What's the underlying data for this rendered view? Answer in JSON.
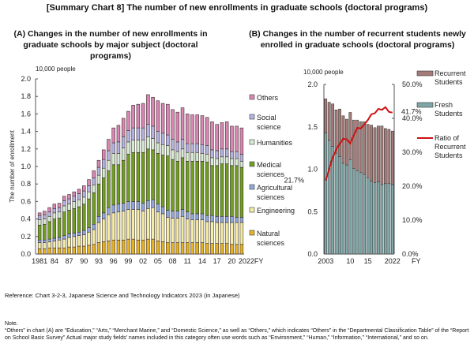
{
  "title": "[Summary Chart 8] The number of new enrollments in graduate schools (doctoral programs)",
  "reference": "Reference: Chart 3-2-3, Japanese Science and Technology Indicators 2023 (in Japanese)",
  "note_heading": "Note.",
  "note_text": "“Others” in chart (A) are “Education,” “Arts,” “Merchant Marine,” and “Domestic Science,” as well as “Others,” which indicates “Others” in the “Departmental Classification Table” of the “Report on School Basic Survey” Actual major study fields’ names included in this category often use words such as “Environment,” “Human,” “Information,” “International,” and so on.",
  "chart_data": [
    {
      "type": "bar",
      "stacked": true,
      "title": "(A) Changes in the number of new enrollments in graduate schools by major subject (doctoral programs)",
      "unit_label": "10,000 people",
      "ylabel": "The number of enrollment",
      "xlabel": "FY",
      "ylim": [
        0,
        2.0
      ],
      "yticks": [
        "0.0",
        "0.2",
        "0.4",
        "0.6",
        "0.8",
        "1.0",
        "1.2",
        "1.4",
        "1.6",
        "1.8",
        "2.0"
      ],
      "xtick_labels": [
        "1981",
        "84",
        "87",
        "90",
        "93",
        "96",
        "99",
        "02",
        "05",
        "08",
        "11",
        "14",
        "17",
        "20",
        "2022FY"
      ],
      "legend_position": "right",
      "categories": [
        "1981",
        "1982",
        "1983",
        "1984",
        "1985",
        "1986",
        "1987",
        "1988",
        "1989",
        "1990",
        "1991",
        "1992",
        "1993",
        "1994",
        "1995",
        "1996",
        "1997",
        "1998",
        "1999",
        "2000",
        "2001",
        "2002",
        "2003",
        "2004",
        "2005",
        "2006",
        "2007",
        "2008",
        "2009",
        "2010",
        "2011",
        "2012",
        "2013",
        "2014",
        "2015",
        "2016",
        "2017",
        "2018",
        "2019",
        "2020",
        "2021",
        "2022"
      ],
      "series": [
        {
          "name": "Natural sciences",
          "color": "#e6b422",
          "values": [
            0.06,
            0.06,
            0.07,
            0.07,
            0.07,
            0.07,
            0.08,
            0.08,
            0.09,
            0.09,
            0.1,
            0.11,
            0.13,
            0.14,
            0.15,
            0.16,
            0.16,
            0.16,
            0.17,
            0.17,
            0.16,
            0.16,
            0.17,
            0.17,
            0.15,
            0.14,
            0.13,
            0.13,
            0.13,
            0.13,
            0.13,
            0.13,
            0.13,
            0.13,
            0.12,
            0.12,
            0.12,
            0.12,
            0.12,
            0.11,
            0.11,
            0.11
          ]
        },
        {
          "name": "Engineering",
          "color": "#f4eda6",
          "values": [
            0.07,
            0.07,
            0.07,
            0.08,
            0.09,
            0.1,
            0.11,
            0.12,
            0.12,
            0.13,
            0.15,
            0.17,
            0.23,
            0.26,
            0.3,
            0.31,
            0.32,
            0.33,
            0.34,
            0.34,
            0.35,
            0.33,
            0.35,
            0.36,
            0.33,
            0.32,
            0.29,
            0.28,
            0.28,
            0.3,
            0.27,
            0.26,
            0.26,
            0.26,
            0.25,
            0.25,
            0.24,
            0.24,
            0.24,
            0.25,
            0.25,
            0.25
          ]
        },
        {
          "name": "Agricultural sciences",
          "color": "#8eaadb",
          "values": [
            0.03,
            0.03,
            0.03,
            0.03,
            0.03,
            0.04,
            0.04,
            0.04,
            0.04,
            0.05,
            0.05,
            0.06,
            0.07,
            0.07,
            0.08,
            0.09,
            0.09,
            0.09,
            0.09,
            0.09,
            0.09,
            0.09,
            0.09,
            0.09,
            0.09,
            0.08,
            0.08,
            0.08,
            0.08,
            0.08,
            0.08,
            0.07,
            0.07,
            0.07,
            0.07,
            0.07,
            0.07,
            0.07,
            0.07,
            0.07,
            0.06,
            0.06
          ]
        },
        {
          "name": "Medical sciences",
          "color": "#6fa020",
          "values": [
            0.17,
            0.18,
            0.2,
            0.22,
            0.22,
            0.27,
            0.27,
            0.28,
            0.29,
            0.3,
            0.33,
            0.36,
            0.37,
            0.4,
            0.42,
            0.46,
            0.45,
            0.49,
            0.54,
            0.56,
            0.56,
            0.58,
            0.59,
            0.57,
            0.58,
            0.59,
            0.62,
            0.59,
            0.57,
            0.59,
            0.58,
            0.6,
            0.6,
            0.6,
            0.61,
            0.57,
            0.58,
            0.6,
            0.6,
            0.58,
            0.59,
            0.57
          ]
        },
        {
          "name": "Humanities",
          "color": "#d4ecd2",
          "values": [
            0.06,
            0.06,
            0.06,
            0.07,
            0.07,
            0.07,
            0.07,
            0.08,
            0.08,
            0.08,
            0.08,
            0.09,
            0.1,
            0.11,
            0.12,
            0.13,
            0.13,
            0.14,
            0.14,
            0.14,
            0.14,
            0.14,
            0.14,
            0.13,
            0.12,
            0.12,
            0.12,
            0.11,
            0.11,
            0.1,
            0.1,
            0.1,
            0.1,
            0.09,
            0.09,
            0.09,
            0.08,
            0.08,
            0.08,
            0.08,
            0.08,
            0.07
          ]
        },
        {
          "name": "Social science",
          "color": "#b4b4e2",
          "values": [
            0.05,
            0.05,
            0.05,
            0.05,
            0.05,
            0.06,
            0.06,
            0.06,
            0.07,
            0.07,
            0.07,
            0.08,
            0.09,
            0.1,
            0.11,
            0.12,
            0.13,
            0.13,
            0.13,
            0.14,
            0.14,
            0.14,
            0.14,
            0.14,
            0.13,
            0.13,
            0.12,
            0.12,
            0.11,
            0.11,
            0.1,
            0.1,
            0.1,
            0.1,
            0.1,
            0.09,
            0.09,
            0.09,
            0.09,
            0.08,
            0.08,
            0.08
          ]
        },
        {
          "name": "Others",
          "color": "#d987b5",
          "values": [
            0.03,
            0.04,
            0.05,
            0.05,
            0.05,
            0.05,
            0.05,
            0.05,
            0.05,
            0.06,
            0.07,
            0.08,
            0.08,
            0.11,
            0.13,
            0.17,
            0.19,
            0.21,
            0.22,
            0.26,
            0.27,
            0.28,
            0.34,
            0.33,
            0.35,
            0.34,
            0.35,
            0.34,
            0.34,
            0.36,
            0.34,
            0.33,
            0.33,
            0.33,
            0.32,
            0.32,
            0.3,
            0.3,
            0.31,
            0.29,
            0.29,
            0.3
          ]
        }
      ]
    },
    {
      "type": "bar",
      "stacked": true,
      "secondary_type": "line",
      "title": "(B) Changes in the number of recurrent students newly enrolled in graduate schools (doctoral programs)",
      "unit_label": "10,000 people",
      "xlabel": "FY",
      "ylim": [
        0,
        2.0
      ],
      "y2lim": [
        0,
        50
      ],
      "yticks": [
        "0.0",
        "0.5",
        "1.0",
        "1.5",
        "2.0"
      ],
      "y2ticks": [
        "0.0%",
        "10.0%",
        "20.0%",
        "30.0%",
        "40.0%",
        "50.0%"
      ],
      "xtick_labels": [
        "2003",
        "10",
        "15",
        "2022"
      ],
      "legend_position": "right",
      "annotations": [
        "21.7%",
        "41.7%"
      ],
      "categories": [
        "2003",
        "2004",
        "2005",
        "2006",
        "2007",
        "2008",
        "2009",
        "2010",
        "2011",
        "2012",
        "2013",
        "2014",
        "2015",
        "2016",
        "2017",
        "2018",
        "2019",
        "2020",
        "2021",
        "2022"
      ],
      "series": [
        {
          "name": "Fresh Students",
          "color": "#7fa7a8",
          "values": [
            1.43,
            1.34,
            1.27,
            1.19,
            1.15,
            1.07,
            1.05,
            1.11,
            1.01,
            0.98,
            0.96,
            0.94,
            0.9,
            0.86,
            0.84,
            0.85,
            0.82,
            0.83,
            0.83,
            0.82
          ]
        },
        {
          "name": "Recurrent Students",
          "color": "#a47b78",
          "values": [
            0.4,
            0.45,
            0.5,
            0.51,
            0.56,
            0.56,
            0.54,
            0.56,
            0.57,
            0.6,
            0.6,
            0.62,
            0.63,
            0.66,
            0.65,
            0.66,
            0.69,
            0.65,
            0.64,
            0.63
          ]
        },
        {
          "name": "Ratio of Recurrent Students",
          "color": "#cc1111",
          "axis": "right",
          "unit": "%",
          "values": [
            21.7,
            25.0,
            28.5,
            30.8,
            32.5,
            34.0,
            33.8,
            32.6,
            35.0,
            37.2,
            37.0,
            38.2,
            39.5,
            41.2,
            41.5,
            42.8,
            42.5,
            43.3,
            41.9,
            41.7
          ]
        }
      ]
    }
  ]
}
